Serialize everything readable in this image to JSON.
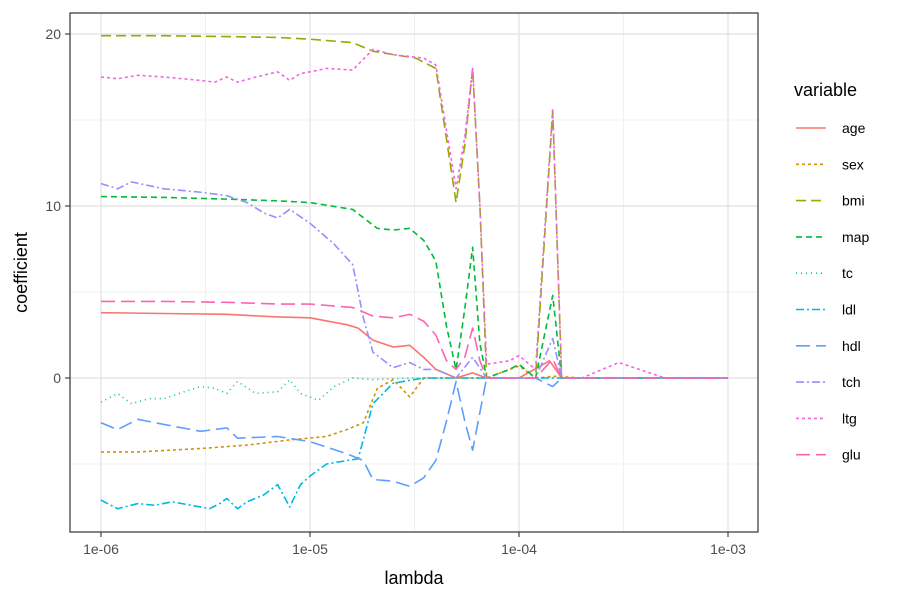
{
  "chart_data": {
    "type": "line",
    "xlabel": "lambda",
    "ylabel": "coefficient",
    "x_scale": "log10",
    "xlim": [
      1e-06,
      0.001
    ],
    "ylim": [
      -9,
      21
    ],
    "x_ticks": [
      1e-06,
      1e-05,
      0.0001,
      0.001
    ],
    "x_tick_labels": [
      "1e-06",
      "1e-05",
      "1e-04",
      "1e-03"
    ],
    "y_ticks": [
      0,
      10,
      20
    ],
    "y_tick_labels": [
      "0",
      "10",
      "20"
    ],
    "grid": true,
    "legend": {
      "title": "variable",
      "position": "right"
    },
    "series": [
      {
        "name": "age",
        "color": "#F8766D",
        "dash": "solid",
        "points": [
          [
            1e-06,
            3.8
          ],
          [
            2e-06,
            3.75
          ],
          [
            4e-06,
            3.7
          ],
          [
            7e-06,
            3.55
          ],
          [
            1e-05,
            3.5
          ],
          [
            1.5e-05,
            3.1
          ],
          [
            1.7e-05,
            2.9
          ],
          [
            2e-05,
            2.2
          ],
          [
            2.5e-05,
            1.8
          ],
          [
            3e-05,
            1.9
          ],
          [
            3.5e-05,
            1.2
          ],
          [
            4e-05,
            0.5
          ],
          [
            5e-05,
            0.0
          ],
          [
            6e-05,
            0.3
          ],
          [
            7e-05,
            0.0
          ],
          [
            0.0001,
            0.0
          ],
          [
            0.00014,
            1.0
          ],
          [
            0.00016,
            0.0
          ],
          [
            0.0003,
            0.0
          ],
          [
            0.001,
            0.0
          ]
        ]
      },
      {
        "name": "sex",
        "color": "#D39200",
        "dash": "3,3",
        "points": [
          [
            1e-06,
            -4.3
          ],
          [
            1.5e-06,
            -4.3
          ],
          [
            3e-06,
            -4.1
          ],
          [
            5e-06,
            -3.9
          ],
          [
            8e-06,
            -3.6
          ],
          [
            1.2e-05,
            -3.4
          ],
          [
            1.5e-05,
            -3.0
          ],
          [
            1.8e-05,
            -2.6
          ],
          [
            2.1e-05,
            -0.6
          ],
          [
            2.5e-05,
            -0.1
          ],
          [
            3e-05,
            -1.1
          ],
          [
            3.5e-05,
            0.0
          ],
          [
            5e-05,
            0.0
          ],
          [
            7e-05,
            0.0
          ],
          [
            0.0001,
            0.7
          ],
          [
            0.00012,
            0.0
          ],
          [
            0.00015,
            0.1
          ],
          [
            0.0002,
            0.0
          ],
          [
            0.001,
            0.0
          ]
        ]
      },
      {
        "name": "bmi",
        "color": "#93AA00",
        "dash": "10,5",
        "points": [
          [
            1e-06,
            19.9
          ],
          [
            2e-06,
            19.9
          ],
          [
            4e-06,
            19.85
          ],
          [
            7e-06,
            19.8
          ],
          [
            1e-05,
            19.7
          ],
          [
            1.6e-05,
            19.5
          ],
          [
            2e-05,
            19.0
          ],
          [
            2.5e-05,
            18.8
          ],
          [
            3.2e-05,
            18.6
          ],
          [
            4e-05,
            18.0
          ],
          [
            5e-05,
            10.2
          ],
          [
            5.5e-05,
            13.5
          ],
          [
            6e-05,
            18.0
          ],
          [
            6.5e-05,
            10.0
          ],
          [
            7e-05,
            0.0
          ],
          [
            0.0001,
            0.0
          ],
          [
            0.00012,
            0.0
          ],
          [
            0.000145,
            15.5
          ],
          [
            0.00016,
            0.0
          ],
          [
            0.0002,
            0.0
          ],
          [
            0.001,
            0.0
          ]
        ]
      },
      {
        "name": "map",
        "color": "#00BA38",
        "dash": "6,4",
        "points": [
          [
            1e-06,
            10.55
          ],
          [
            2e-06,
            10.5
          ],
          [
            4e-06,
            10.4
          ],
          [
            7e-06,
            10.3
          ],
          [
            1e-05,
            10.2
          ],
          [
            1.6e-05,
            9.8
          ],
          [
            2.1e-05,
            8.7
          ],
          [
            2.5e-05,
            8.6
          ],
          [
            3e-05,
            8.7
          ],
          [
            3.5e-05,
            8.0
          ],
          [
            4e-05,
            6.8
          ],
          [
            4.5e-05,
            3.0
          ],
          [
            5e-05,
            0.5
          ],
          [
            5.5e-05,
            4.0
          ],
          [
            6e-05,
            7.6
          ],
          [
            6.5e-05,
            2.0
          ],
          [
            7e-05,
            0.0
          ],
          [
            9e-05,
            0.5
          ],
          [
            0.0001,
            0.8
          ],
          [
            0.00012,
            0.0
          ],
          [
            0.000145,
            4.8
          ],
          [
            0.00016,
            0.0
          ],
          [
            0.0002,
            0.0
          ],
          [
            0.001,
            0.0
          ]
        ]
      },
      {
        "name": "tc",
        "color": "#00C19F",
        "dash": "1,4",
        "points": [
          [
            1e-06,
            -1.4
          ],
          [
            1.2e-06,
            -0.9
          ],
          [
            1.4e-06,
            -1.5
          ],
          [
            1.7e-06,
            -1.2
          ],
          [
            2e-06,
            -1.2
          ],
          [
            2.5e-06,
            -0.8
          ],
          [
            3e-06,
            -0.5
          ],
          [
            3.5e-06,
            -0.6
          ],
          [
            4e-06,
            -0.9
          ],
          [
            4.5e-06,
            -0.2
          ],
          [
            5.5e-06,
            -0.9
          ],
          [
            7e-06,
            -0.8
          ],
          [
            8e-06,
            -0.1
          ],
          [
            9e-06,
            -0.9
          ],
          [
            1.1e-05,
            -1.3
          ],
          [
            1.3e-05,
            -0.5
          ],
          [
            1.6e-05,
            0.0
          ],
          [
            2e-05,
            -0.1
          ],
          [
            3e-05,
            0.0
          ],
          [
            0.001,
            0.0
          ]
        ]
      },
      {
        "name": "ldl",
        "color": "#00B9E3",
        "dash": "8,3,2,3",
        "points": [
          [
            1e-06,
            -7.1
          ],
          [
            1.2e-06,
            -7.6
          ],
          [
            1.5e-06,
            -7.3
          ],
          [
            1.8e-06,
            -7.4
          ],
          [
            2.2e-06,
            -7.2
          ],
          [
            2.7e-06,
            -7.4
          ],
          [
            3.3e-06,
            -7.6
          ],
          [
            3.7e-06,
            -7.3
          ],
          [
            4e-06,
            -7.0
          ],
          [
            4.5e-06,
            -7.6
          ],
          [
            5e-06,
            -7.2
          ],
          [
            6e-06,
            -6.8
          ],
          [
            7e-06,
            -6.2
          ],
          [
            8e-06,
            -7.5
          ],
          [
            9e-06,
            -6.2
          ],
          [
            1e-05,
            -5.7
          ],
          [
            1.2e-05,
            -5.0
          ],
          [
            1.5e-05,
            -4.8
          ],
          [
            1.7e-05,
            -4.7
          ],
          [
            2e-05,
            -1.5
          ],
          [
            2.5e-05,
            -0.3
          ],
          [
            3.5e-05,
            0.0
          ],
          [
            0.001,
            0.0
          ]
        ]
      },
      {
        "name": "hdl",
        "color": "#619CFF",
        "dash": "14,6",
        "points": [
          [
            1e-06,
            -2.6
          ],
          [
            1.2e-06,
            -3.0
          ],
          [
            1.5e-06,
            -2.4
          ],
          [
            2e-06,
            -2.7
          ],
          [
            3e-06,
            -3.1
          ],
          [
            4e-06,
            -2.9
          ],
          [
            4.5e-06,
            -3.5
          ],
          [
            7e-06,
            -3.4
          ],
          [
            1e-05,
            -3.7
          ],
          [
            1.5e-05,
            -4.4
          ],
          [
            1.8e-05,
            -4.8
          ],
          [
            2e-05,
            -5.9
          ],
          [
            2.5e-05,
            -6.0
          ],
          [
            3e-05,
            -6.3
          ],
          [
            3.5e-05,
            -5.8
          ],
          [
            4e-05,
            -4.8
          ],
          [
            4.5e-05,
            -2.5
          ],
          [
            5e-05,
            -0.2
          ],
          [
            5.5e-05,
            -2.5
          ],
          [
            6e-05,
            -4.2
          ],
          [
            6.5e-05,
            -2.0
          ],
          [
            7e-05,
            0.0
          ],
          [
            0.0001,
            0.0
          ],
          [
            0.00012,
            0.0
          ],
          [
            0.000145,
            -0.5
          ],
          [
            0.00016,
            0.0
          ],
          [
            0.001,
            0.0
          ]
        ]
      },
      {
        "name": "tch",
        "color": "#9590FF",
        "dash": "8,3,2,3",
        "points": [
          [
            1e-06,
            11.3
          ],
          [
            1.2e-06,
            11.0
          ],
          [
            1.4e-06,
            11.4
          ],
          [
            2e-06,
            11.0
          ],
          [
            3e-06,
            10.8
          ],
          [
            4e-06,
            10.6
          ],
          [
            5e-06,
            10.2
          ],
          [
            6e-06,
            9.6
          ],
          [
            7e-06,
            9.3
          ],
          [
            8e-06,
            9.8
          ],
          [
            1e-05,
            9.0
          ],
          [
            1.3e-05,
            7.8
          ],
          [
            1.6e-05,
            6.6
          ],
          [
            1.8e-05,
            3.5
          ],
          [
            2e-05,
            1.5
          ],
          [
            2.5e-05,
            0.6
          ],
          [
            3e-05,
            0.9
          ],
          [
            3.5e-05,
            0.5
          ],
          [
            4e-05,
            0.5
          ],
          [
            5e-05,
            0.0
          ],
          [
            6e-05,
            1.2
          ],
          [
            7e-05,
            0.0
          ],
          [
            0.00012,
            0.0
          ],
          [
            0.000145,
            2.3
          ],
          [
            0.00016,
            0.0
          ],
          [
            0.001,
            0.0
          ]
        ]
      },
      {
        "name": "ltg",
        "color": "#F564E3",
        "dash": "3,3",
        "points": [
          [
            1e-06,
            17.5
          ],
          [
            1.2e-06,
            17.4
          ],
          [
            1.5e-06,
            17.6
          ],
          [
            2e-06,
            17.5
          ],
          [
            3e-06,
            17.3
          ],
          [
            3.5e-06,
            17.2
          ],
          [
            4e-06,
            17.5
          ],
          [
            4.5e-06,
            17.2
          ],
          [
            5.5e-06,
            17.5
          ],
          [
            7e-06,
            17.8
          ],
          [
            8e-06,
            17.3
          ],
          [
            9e-06,
            17.7
          ],
          [
            1e-05,
            17.8
          ],
          [
            1.2e-05,
            18.0
          ],
          [
            1.6e-05,
            17.9
          ],
          [
            2e-05,
            19.1
          ],
          [
            2.5e-05,
            18.8
          ],
          [
            3.5e-05,
            18.6
          ],
          [
            4e-05,
            18.2
          ],
          [
            5e-05,
            11.0
          ],
          [
            5.5e-05,
            14.0
          ],
          [
            6e-05,
            18.0
          ],
          [
            6.5e-05,
            10.0
          ],
          [
            7e-05,
            0.8
          ],
          [
            9e-05,
            1.0
          ],
          [
            0.0001,
            1.3
          ],
          [
            0.00012,
            0.5
          ],
          [
            0.000145,
            15.7
          ],
          [
            0.00016,
            0.0
          ],
          [
            0.0002,
            0.0
          ],
          [
            0.0003,
            0.9
          ],
          [
            0.0005,
            0.0
          ],
          [
            0.001,
            0.0
          ]
        ]
      },
      {
        "name": "glu",
        "color": "#FF64B0",
        "dash": "14,6",
        "points": [
          [
            1e-06,
            4.45
          ],
          [
            2e-06,
            4.45
          ],
          [
            4e-06,
            4.4
          ],
          [
            7e-06,
            4.3
          ],
          [
            1e-05,
            4.3
          ],
          [
            1.6e-05,
            4.1
          ],
          [
            2e-05,
            3.6
          ],
          [
            2.5e-05,
            3.5
          ],
          [
            3e-05,
            3.7
          ],
          [
            3.5e-05,
            3.3
          ],
          [
            4e-05,
            2.5
          ],
          [
            4.5e-05,
            1.0
          ],
          [
            5e-05,
            0.5
          ],
          [
            5.5e-05,
            1.2
          ],
          [
            6e-05,
            2.9
          ],
          [
            6.5e-05,
            1.0
          ],
          [
            7e-05,
            0.0
          ],
          [
            0.0001,
            0.0
          ],
          [
            0.00012,
            0.0
          ],
          [
            0.000145,
            1.1
          ],
          [
            0.00016,
            0.0
          ],
          [
            0.001,
            0.0
          ]
        ]
      }
    ]
  }
}
